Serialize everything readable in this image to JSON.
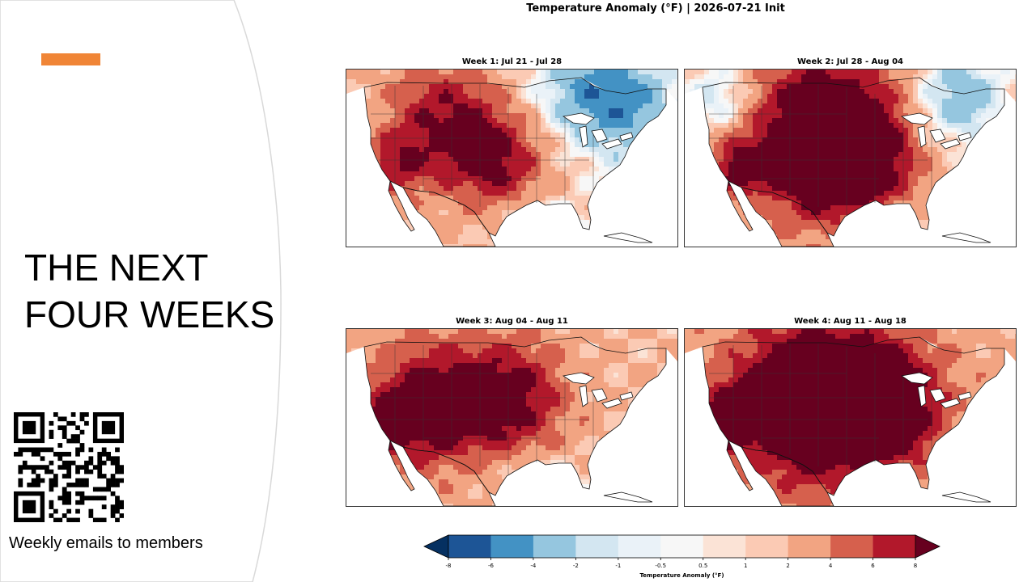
{
  "slide": {
    "title_line1": "THE NEXT",
    "title_line2": "FOUR WEEKS",
    "caption": "Weekly emails to members",
    "accent_color": "#f08536"
  },
  "figure": {
    "title": "Temperature Anomaly (°F) | 2026-07-21 Init",
    "panels": [
      {
        "title": "Week 1: Jul 21 - Jul 28",
        "intensity": 0.95,
        "hot_center": "west-plains",
        "cool_region": "north-east"
      },
      {
        "title": "Week 2: Jul 28 - Aug 04",
        "intensity": 1.25,
        "hot_center": "central",
        "cool_region": "north-west-and-north-east"
      },
      {
        "title": "Week 3: Aug 04 - Aug 11",
        "intensity": 1.1,
        "hot_center": "west-central",
        "cool_region": "none"
      },
      {
        "title": "Week 4: Aug 11 - Aug 18",
        "intensity": 1.35,
        "hot_center": "central-east",
        "cool_region": "none"
      }
    ],
    "colorbar": {
      "label": "Temperature Anomaly (°F)",
      "ticks": [
        "-8",
        "-6",
        "-4",
        "-2",
        "-1",
        "-0.5",
        "0.5",
        "1",
        "2",
        "4",
        "6",
        "8"
      ],
      "colors": [
        "#1d5596",
        "#4392c4",
        "#95c6df",
        "#d3e6f1",
        "#eaf2f8",
        "#f7f7f7",
        "#fbe3d6",
        "#fbcab4",
        "#f2a482",
        "#d6604d",
        "#b2182b"
      ],
      "under_color": "#053061",
      "over_color": "#67001f"
    }
  }
}
